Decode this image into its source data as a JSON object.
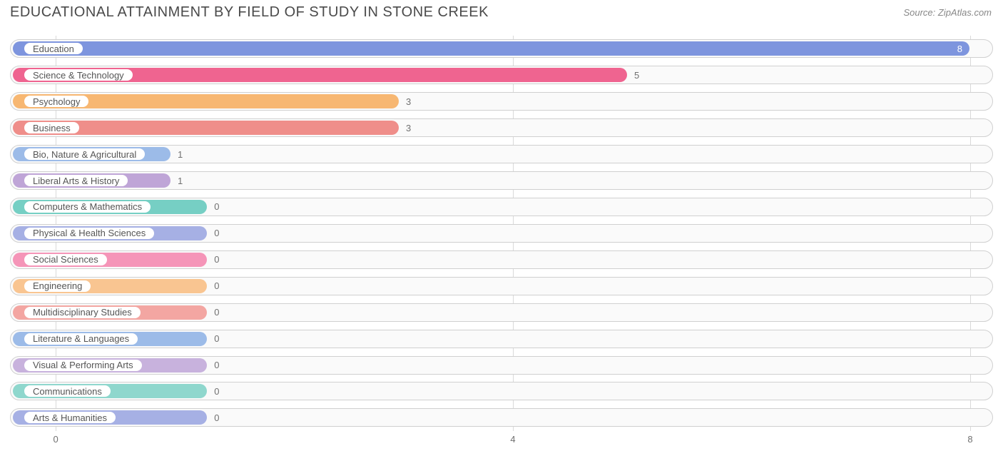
{
  "title": "EDUCATIONAL ATTAINMENT BY FIELD OF STUDY IN STONE CREEK",
  "source": "Source: ZipAtlas.com",
  "chart": {
    "type": "bar-horizontal",
    "x_min": -0.4,
    "x_max": 8.2,
    "x_ticks": [
      0,
      4,
      8
    ],
    "label_offset_pct": 20.0,
    "grid_color": "#d9d9d9",
    "track_border": "#d0d0d0",
    "track_bg": "#fafafa",
    "title_color": "#4a4a4a",
    "source_color": "#888888",
    "axis_color": "#707070",
    "value_color_outside": "#707070",
    "value_color_inside": "#ffffff",
    "series": [
      {
        "label": "Education",
        "value": 8,
        "color": "#7e95de",
        "value_inside": true
      },
      {
        "label": "Science & Technology",
        "value": 5,
        "color": "#ef6490",
        "value_inside": false
      },
      {
        "label": "Psychology",
        "value": 3,
        "color": "#f7b772",
        "value_inside": false
      },
      {
        "label": "Business",
        "value": 3,
        "color": "#ef8e8a",
        "value_inside": false
      },
      {
        "label": "Bio, Nature & Agricultural",
        "value": 1,
        "color": "#9cbbe8",
        "value_inside": false
      },
      {
        "label": "Liberal Arts & History",
        "value": 1,
        "color": "#bfa5d7",
        "value_inside": false
      },
      {
        "label": "Computers & Mathematics",
        "value": 0,
        "color": "#76cfc4",
        "value_inside": false
      },
      {
        "label": "Physical & Health Sciences",
        "value": 0,
        "color": "#a6b0e4",
        "value_inside": false
      },
      {
        "label": "Social Sciences",
        "value": 0,
        "color": "#f595b8",
        "value_inside": false
      },
      {
        "label": "Engineering",
        "value": 0,
        "color": "#f9c591",
        "value_inside": false
      },
      {
        "label": "Multidisciplinary Studies",
        "value": 0,
        "color": "#f3a6a2",
        "value_inside": false
      },
      {
        "label": "Literature & Languages",
        "value": 0,
        "color": "#9cbbe8",
        "value_inside": false
      },
      {
        "label": "Visual & Performing Arts",
        "value": 0,
        "color": "#c8b2dd",
        "value_inside": false
      },
      {
        "label": "Communications",
        "value": 0,
        "color": "#8fd7cd",
        "value_inside": false
      },
      {
        "label": "Arts & Humanities",
        "value": 0,
        "color": "#a6b0e4",
        "value_inside": false
      }
    ]
  }
}
